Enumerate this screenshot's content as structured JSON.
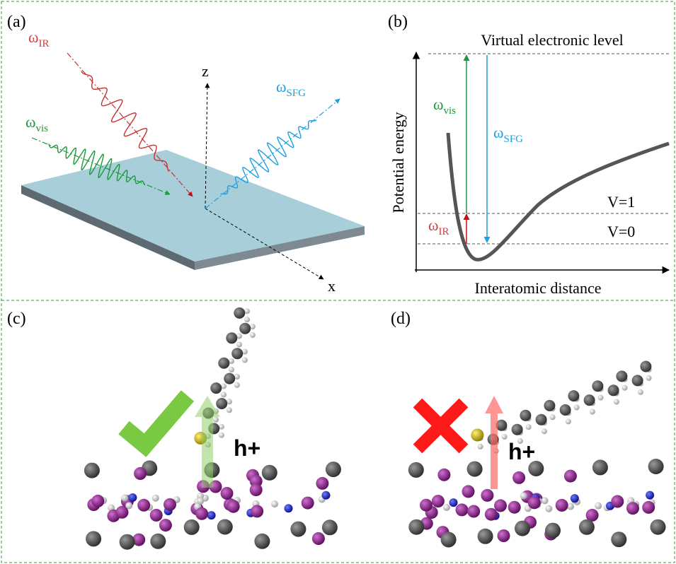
{
  "panel_a": {
    "label": "(a)",
    "beams": [
      {
        "symbol": "ω",
        "subscript": "IR"
      },
      {
        "symbol": "ω",
        "subscript": "vis"
      },
      {
        "symbol": "ω",
        "subscript": "SFG"
      }
    ],
    "axes": [
      "z",
      "x"
    ]
  },
  "panel_b": {
    "label": "(b)",
    "top_level": "Virtual electronic level",
    "y_axis": "Potential energy",
    "x_axis": "Interatomic distance",
    "levels": [
      "V=1",
      "V=0"
    ],
    "transitions": [
      {
        "symbol": "ω",
        "subscript": "vis"
      },
      {
        "symbol": "ω",
        "subscript": "SFG"
      },
      {
        "symbol": "ω",
        "subscript": "IR"
      }
    ]
  },
  "panel_c": {
    "label": "(c)",
    "charge": "h+"
  },
  "panel_d": {
    "label": "(d)",
    "charge": "h+"
  }
}
